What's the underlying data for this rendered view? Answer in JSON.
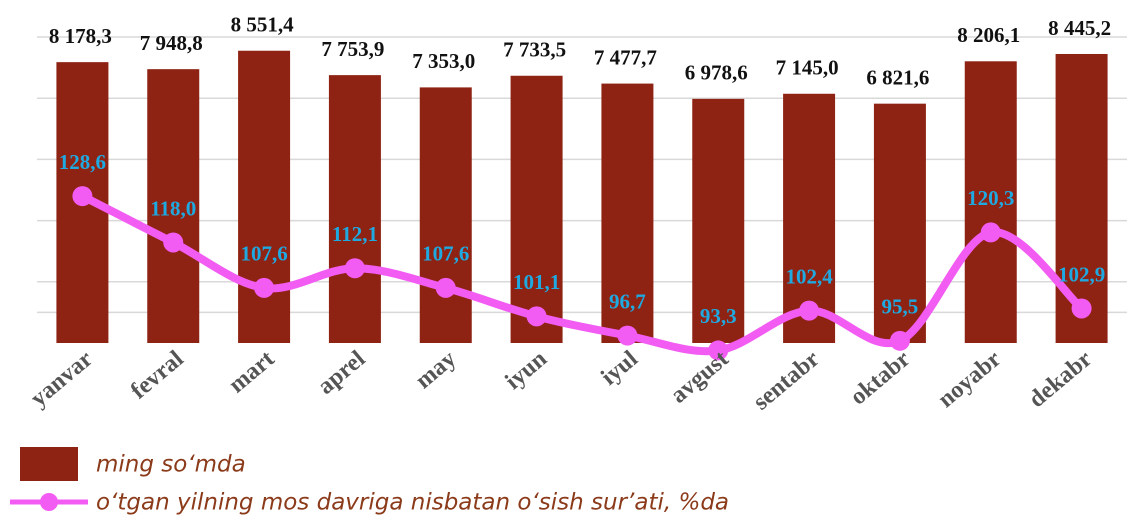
{
  "chart_data": {
    "type": "bar",
    "categories": [
      "yanvar",
      "fevral",
      "mart",
      "aprel",
      "may",
      "iyun",
      "iyul",
      "avgust",
      "sentabr",
      "oktabr",
      "noyabr",
      "dekabr"
    ],
    "series": [
      {
        "name": "ming so‘mda",
        "type": "bar",
        "color": "#8e2314",
        "values": [
          8178.3,
          7948.8,
          8551.4,
          7753.9,
          7353.0,
          7733.5,
          7477.7,
          6978.6,
          7145.0,
          6821.6,
          8206.1,
          8445.2
        ],
        "value_labels": [
          "8 178,3",
          "7 948,8",
          "8 551,4",
          "7 753,9",
          "7 353,0",
          "7 733,5",
          "7 477,7",
          "6 978,6",
          "7 145,0",
          "6 821,6",
          "8 206,1",
          "8 445,2"
        ]
      },
      {
        "name": "o‘tgan yilning mos davriga nisbatan o‘sish sur’ati, %da",
        "type": "line",
        "axis": "y2",
        "color": "#f25cf2",
        "values": [
          128.6,
          118.0,
          107.6,
          112.1,
          107.6,
          101.1,
          96.7,
          93.3,
          102.4,
          95.5,
          120.3,
          102.9
        ],
        "value_labels": [
          "128,6",
          "118,0",
          "107,6",
          "112,1",
          "107,6",
          "101,1",
          "96,7",
          "93,3",
          "102,4",
          "95,5",
          "120,3",
          "102,9"
        ]
      }
    ],
    "ylim": [
      -1000,
      9000
    ],
    "yticks": [
      0,
      1000,
      3000,
      5000,
      7000,
      9000
    ],
    "y2lim": [
      95,
      165
    ],
    "grid": true
  }
}
